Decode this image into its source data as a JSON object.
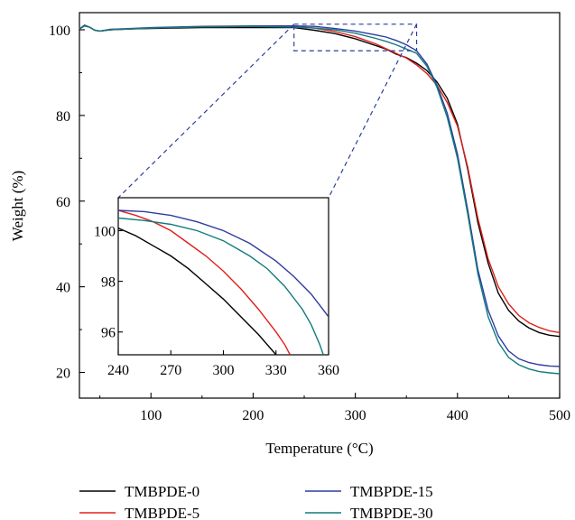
{
  "chart_data": [
    {
      "type": "line",
      "title": "",
      "xlabel": "Temperature (°C)",
      "ylabel": "Weight (%)",
      "xlim": [
        30,
        500
      ],
      "ylim": [
        14,
        104
      ],
      "x_ticks": [
        100,
        200,
        300,
        400,
        500
      ],
      "y_ticks": [
        20,
        40,
        60,
        80,
        100
      ],
      "grid": false,
      "legend_position": "bottom",
      "series": [
        {
          "name": "TMBPDE-0",
          "color": "#000000",
          "points": [
            [
              30,
              100.2
            ],
            [
              35,
              100.9
            ],
            [
              40,
              100.6
            ],
            [
              45,
              99.9
            ],
            [
              50,
              99.7
            ],
            [
              60,
              100.0
            ],
            [
              80,
              100.2
            ],
            [
              100,
              100.3
            ],
            [
              150,
              100.5
            ],
            [
              200,
              100.5
            ],
            [
              240,
              100.5
            ],
            [
              260,
              99.9
            ],
            [
              280,
              99.1
            ],
            [
              300,
              97.9
            ],
            [
              320,
              96.3
            ],
            [
              330,
              95.5
            ],
            [
              340,
              94.3
            ],
            [
              350,
              93.5
            ],
            [
              360,
              92.2
            ],
            [
              370,
              90.5
            ],
            [
              380,
              87.8
            ],
            [
              390,
              84.0
            ],
            [
              400,
              78.0
            ],
            [
              410,
              67.5
            ],
            [
              420,
              55.0
            ],
            [
              430,
              45.5
            ],
            [
              440,
              38.5
            ],
            [
              450,
              34.5
            ],
            [
              460,
              32.0
            ],
            [
              470,
              30.4
            ],
            [
              480,
              29.3
            ],
            [
              490,
              28.7
            ],
            [
              500,
              28.4
            ]
          ]
        },
        {
          "name": "TMBPDE-5",
          "color": "#e0201b",
          "points": [
            [
              30,
              100.2
            ],
            [
              35,
              100.9
            ],
            [
              40,
              100.6
            ],
            [
              45,
              99.9
            ],
            [
              50,
              99.7
            ],
            [
              60,
              100.0
            ],
            [
              80,
              100.2
            ],
            [
              100,
              100.4
            ],
            [
              150,
              100.7
            ],
            [
              200,
              100.8
            ],
            [
              240,
              100.8
            ],
            [
              260,
              100.4
            ],
            [
              280,
              99.6
            ],
            [
              300,
              98.4
            ],
            [
              320,
              96.7
            ],
            [
              330,
              95.6
            ],
            [
              340,
              94.5
            ],
            [
              350,
              93.4
            ],
            [
              360,
              91.8
            ],
            [
              370,
              89.8
            ],
            [
              380,
              87.0
            ],
            [
              390,
              83.0
            ],
            [
              400,
              77.5
            ],
            [
              410,
              68.0
            ],
            [
              420,
              56.0
            ],
            [
              430,
              46.5
            ],
            [
              440,
              40.0
            ],
            [
              450,
              36.0
            ],
            [
              460,
              33.3
            ],
            [
              470,
              31.6
            ],
            [
              480,
              30.5
            ],
            [
              490,
              29.7
            ],
            [
              500,
              29.3
            ]
          ]
        },
        {
          "name": "TMBPDE-15",
          "color": "#2e3ca0",
          "points": [
            [
              30,
              100.2
            ],
            [
              35,
              101.1
            ],
            [
              40,
              100.6
            ],
            [
              45,
              99.9
            ],
            [
              50,
              99.7
            ],
            [
              60,
              100.1
            ],
            [
              80,
              100.3
            ],
            [
              100,
              100.5
            ],
            [
              150,
              100.8
            ],
            [
              200,
              100.9
            ],
            [
              240,
              100.9
            ],
            [
              260,
              100.8
            ],
            [
              280,
              100.3
            ],
            [
              300,
              99.7
            ],
            [
              320,
              98.8
            ],
            [
              330,
              98.3
            ],
            [
              340,
              97.5
            ],
            [
              350,
              96.5
            ],
            [
              360,
              95.1
            ],
            [
              370,
              92.0
            ],
            [
              380,
              87.0
            ],
            [
              390,
              80.5
            ],
            [
              400,
              71.0
            ],
            [
              410,
              58.0
            ],
            [
              420,
              44.0
            ],
            [
              430,
              34.5
            ],
            [
              440,
              28.5
            ],
            [
              450,
              25.0
            ],
            [
              460,
              23.2
            ],
            [
              470,
              22.3
            ],
            [
              480,
              21.8
            ],
            [
              490,
              21.5
            ],
            [
              500,
              21.4
            ]
          ]
        },
        {
          "name": "TMBPDE-30",
          "color": "#117c7c",
          "points": [
            [
              30,
              100.3
            ],
            [
              35,
              100.9
            ],
            [
              40,
              100.6
            ],
            [
              45,
              99.9
            ],
            [
              50,
              99.7
            ],
            [
              60,
              100.0
            ],
            [
              80,
              100.2
            ],
            [
              100,
              100.4
            ],
            [
              150,
              100.7
            ],
            [
              200,
              100.8
            ],
            [
              240,
              100.6
            ],
            [
              260,
              100.4
            ],
            [
              280,
              100.0
            ],
            [
              300,
              99.2
            ],
            [
              320,
              98.0
            ],
            [
              330,
              97.3
            ],
            [
              340,
              96.5
            ],
            [
              350,
              95.5
            ],
            [
              360,
              94.5
            ],
            [
              370,
              91.5
            ],
            [
              380,
              86.5
            ],
            [
              390,
              79.5
            ],
            [
              400,
              70.0
            ],
            [
              410,
              57.0
            ],
            [
              420,
              43.0
            ],
            [
              430,
              33.0
            ],
            [
              440,
              27.0
            ],
            [
              450,
              23.5
            ],
            [
              460,
              21.8
            ],
            [
              470,
              20.8
            ],
            [
              480,
              20.2
            ],
            [
              490,
              19.9
            ],
            [
              500,
              19.7
            ]
          ]
        }
      ]
    },
    {
      "type": "line",
      "title": "",
      "role": "inset",
      "xlabel": "",
      "ylabel": "",
      "xlim": [
        240,
        360
      ],
      "ylim": [
        95.1,
        101.3
      ],
      "x_ticks": [
        240,
        270,
        300,
        330,
        360
      ],
      "y_ticks": [
        96,
        98,
        100
      ],
      "zoom_region": {
        "xlim": [
          240,
          360
        ],
        "ylim": [
          95.1,
          101.3
        ]
      },
      "series": [
        {
          "name": "TMBPDE-0",
          "color": "#000000",
          "points": [
            [
              240,
              100.1
            ],
            [
              250,
              99.8
            ],
            [
              260,
              99.4
            ],
            [
              270,
              99.0
            ],
            [
              280,
              98.5
            ],
            [
              290,
              97.9
            ],
            [
              300,
              97.3
            ],
            [
              310,
              96.6
            ],
            [
              320,
              95.9
            ],
            [
              330,
              95.1
            ]
          ]
        },
        {
          "name": "TMBPDE-5",
          "color": "#e0201b",
          "points": [
            [
              240,
              100.8
            ],
            [
              250,
              100.6
            ],
            [
              260,
              100.35
            ],
            [
              270,
              100.0
            ],
            [
              280,
              99.5
            ],
            [
              290,
              99.0
            ],
            [
              300,
              98.4
            ],
            [
              310,
              97.7
            ],
            [
              320,
              96.9
            ],
            [
              330,
              96.0
            ],
            [
              335,
              95.5
            ],
            [
              338,
              95.1
            ]
          ]
        },
        {
          "name": "TMBPDE-15",
          "color": "#2e3ca0",
          "points": [
            [
              240,
              100.8
            ],
            [
              255,
              100.75
            ],
            [
              270,
              100.6
            ],
            [
              285,
              100.35
            ],
            [
              300,
              100.0
            ],
            [
              315,
              99.5
            ],
            [
              330,
              98.8
            ],
            [
              340,
              98.2
            ],
            [
              350,
              97.5
            ],
            [
              360,
              96.6
            ]
          ]
        },
        {
          "name": "TMBPDE-30",
          "color": "#117c7c",
          "points": [
            [
              240,
              100.5
            ],
            [
              255,
              100.4
            ],
            [
              270,
              100.25
            ],
            [
              285,
              100.0
            ],
            [
              300,
              99.6
            ],
            [
              315,
              99.0
            ],
            [
              325,
              98.5
            ],
            [
              335,
              97.8
            ],
            [
              345,
              96.9
            ],
            [
              350,
              96.3
            ],
            [
              355,
              95.5
            ],
            [
              357,
              95.1
            ]
          ]
        }
      ]
    }
  ]
}
